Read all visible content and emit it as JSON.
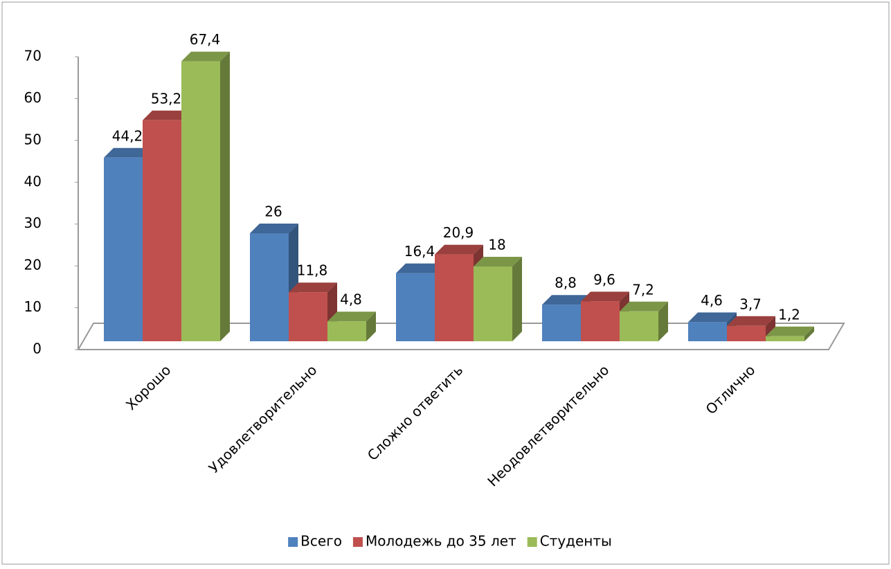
{
  "chart_data": {
    "type": "bar3d",
    "categories": [
      "Хорошо",
      "Удовлетворительно",
      "Сложно ответить",
      "Неодовлетворительно",
      "Отлично"
    ],
    "series": [
      {
        "name": "Всего",
        "color": "#4f81bd",
        "values": [
          44.2,
          26,
          16.4,
          8.8,
          4.6
        ],
        "value_labels": [
          "44,2",
          "26",
          "16,4",
          "8,8",
          "4,6"
        ]
      },
      {
        "name": "Молодежь до 35 лет",
        "color": "#c0504d",
        "values": [
          53.2,
          11.8,
          20.9,
          9.6,
          3.7
        ],
        "value_labels": [
          "53,2",
          "11,8",
          "20,9",
          "9,6",
          "3,7"
        ]
      },
      {
        "name": "Студенты",
        "color": "#9bbb59",
        "values": [
          67.4,
          4.8,
          18,
          7.2,
          1.2
        ],
        "value_labels": [
          "67,4",
          "4,8",
          "18",
          "7,2",
          "1,2"
        ]
      }
    ],
    "ylim": [
      0,
      70
    ],
    "yticks": [
      0,
      10,
      20,
      30,
      40,
      50,
      60,
      70
    ],
    "legend": "bottom"
  }
}
